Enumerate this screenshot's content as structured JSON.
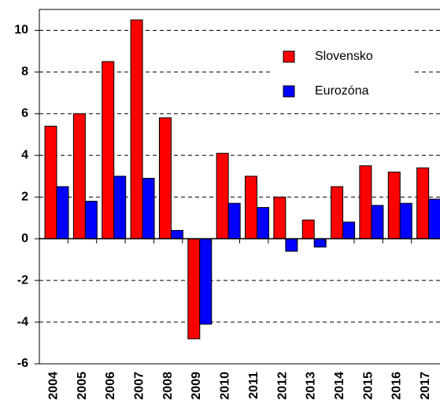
{
  "chart_data": {
    "type": "bar",
    "categories": [
      "2004",
      "2005",
      "2006",
      "2007",
      "2008",
      "2009",
      "2010",
      "2011",
      "2012",
      "2013",
      "2014",
      "2015",
      "2016",
      "2017"
    ],
    "series": [
      {
        "name": "Slovensko",
        "color": "#ff0000",
        "values": [
          5.4,
          6.0,
          8.5,
          10.5,
          5.8,
          -4.8,
          4.1,
          3.0,
          2.0,
          0.9,
          2.5,
          3.5,
          3.2,
          3.4
        ]
      },
      {
        "name": "Eurozóna",
        "color": "#0000ff",
        "values": [
          2.5,
          1.8,
          3.0,
          2.9,
          0.4,
          -4.1,
          1.7,
          1.5,
          -0.6,
          -0.4,
          0.8,
          1.6,
          1.7,
          1.9
        ]
      }
    ],
    "ylim": [
      -6,
      11
    ],
    "yticks": [
      -6,
      -4,
      -2,
      0,
      2,
      4,
      6,
      8,
      10
    ],
    "grid": true,
    "legend": "upper right"
  }
}
